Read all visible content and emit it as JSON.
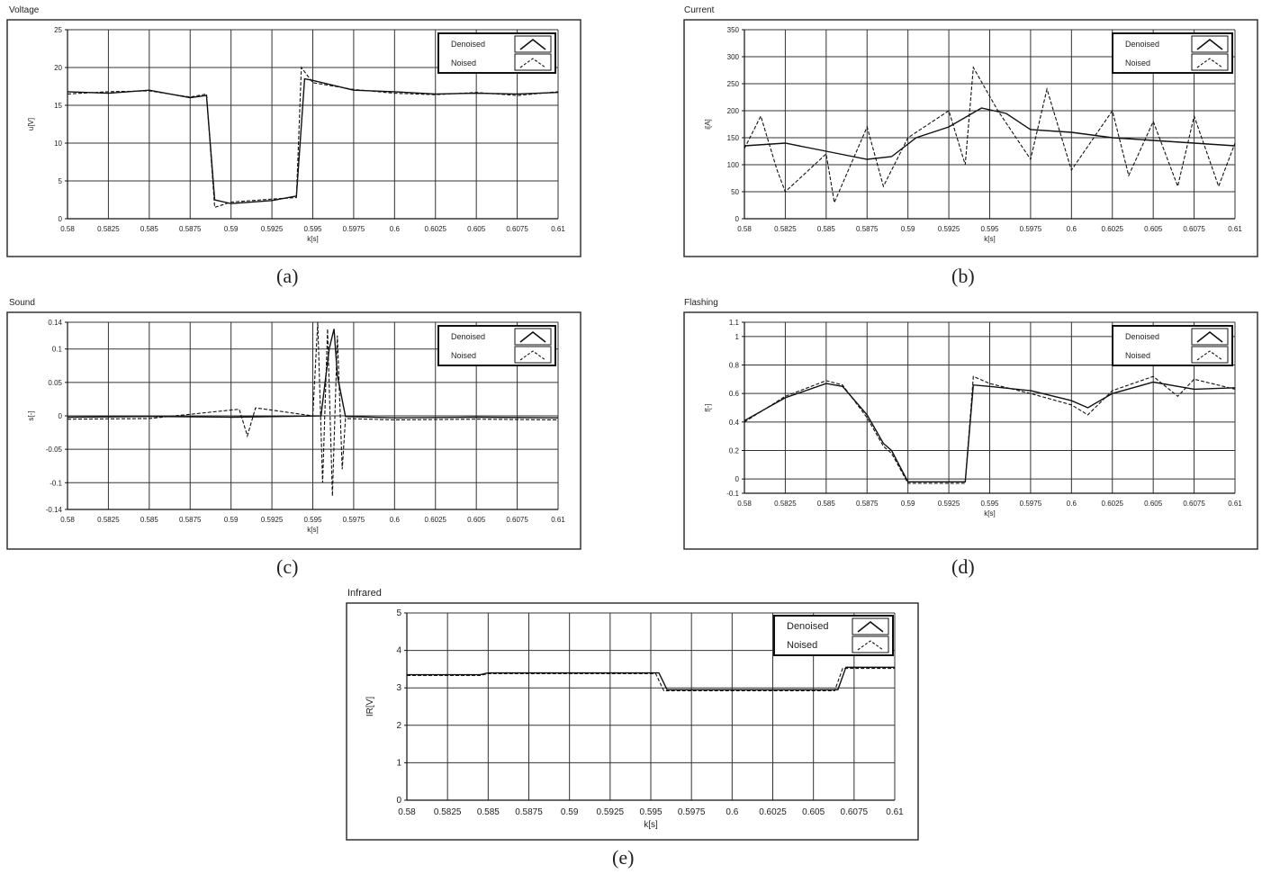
{
  "charts": [
    {
      "id": "a",
      "panel_title": "Voltage",
      "caption": "(a)",
      "ylabel": "u[V]",
      "xlabel": "k[s]",
      "yticks": [
        "0",
        "5",
        "10",
        "15",
        "20",
        "25"
      ],
      "ylim": [
        0,
        25
      ]
    },
    {
      "id": "b",
      "panel_title": "Current",
      "caption": "(b)",
      "ylabel": "i[A]",
      "xlabel": "k[s]",
      "yticks": [
        "0",
        "50",
        "100",
        "150",
        "200",
        "250",
        "300",
        "350"
      ],
      "ylim": [
        0,
        350
      ]
    },
    {
      "id": "c",
      "panel_title": "Sound",
      "caption": "(c)",
      "ylabel": "s[-]",
      "xlabel": "k[s]",
      "yticks": [
        "-0.14",
        "-0.1",
        "-0.05",
        "0",
        "0.05",
        "0.1",
        "0.14"
      ],
      "ytick_vals": [
        -0.14,
        -0.1,
        -0.05,
        0,
        0.05,
        0.1,
        0.14
      ],
      "ylim": [
        -0.14,
        0.14
      ]
    },
    {
      "id": "d",
      "panel_title": "Flashing",
      "caption": "(d)",
      "ylabel": "f[-]",
      "xlabel": "k[s]",
      "yticks": [
        "-0.1",
        "0",
        "0.2",
        "0.4",
        "0.6",
        "0.8",
        "1",
        "1.1"
      ],
      "ytick_vals": [
        -0.1,
        0,
        0.2,
        0.4,
        0.6,
        0.8,
        1,
        1.1
      ],
      "ylim": [
        -0.1,
        1.1
      ]
    },
    {
      "id": "e",
      "panel_title": "Infrared",
      "caption": "(e)",
      "ylabel": "IR[V]",
      "xlabel": "k[s]",
      "yticks": [
        "0",
        "1",
        "2",
        "3",
        "4",
        "5"
      ],
      "ylim": [
        0,
        5
      ]
    }
  ],
  "xticks": [
    "0.58",
    "0.5825",
    "0.585",
    "0.5875",
    "0.59",
    "0.5925",
    "0.595",
    "0.5975",
    "0.6",
    "0.6025",
    "0.605",
    "0.6075",
    "0.61"
  ],
  "legend": {
    "denoised": "Denoised",
    "noised": "Noised"
  },
  "chart_data": [
    {
      "type": "line",
      "title": "Voltage",
      "xlabel": "k[s]",
      "ylabel": "u[V]",
      "ylim": [
        0,
        25
      ],
      "xlim": [
        0.58,
        0.61
      ],
      "series": [
        {
          "name": "Denoised",
          "x": [
            0.58,
            0.5825,
            0.585,
            0.5875,
            0.5885,
            0.589,
            0.59,
            0.5925,
            0.594,
            0.5945,
            0.595,
            0.5975,
            0.6,
            0.6025,
            0.605,
            0.6075,
            0.61
          ],
          "values": [
            16.8,
            16.6,
            17.0,
            16.0,
            16.3,
            2.5,
            2.0,
            2.4,
            3.0,
            18.5,
            18.3,
            17.0,
            16.8,
            16.5,
            16.6,
            16.5,
            16.7
          ]
        },
        {
          "name": "Noised",
          "x": [
            0.58,
            0.5825,
            0.585,
            0.5875,
            0.5885,
            0.589,
            0.59,
            0.5925,
            0.594,
            0.5943,
            0.595,
            0.5975,
            0.6,
            0.6025,
            0.605,
            0.6075,
            0.61
          ],
          "values": [
            16.5,
            16.8,
            16.9,
            16.1,
            16.5,
            1.5,
            2.2,
            2.6,
            2.8,
            20.0,
            18.0,
            17.1,
            16.6,
            16.4,
            16.7,
            16.3,
            16.8
          ]
        }
      ]
    },
    {
      "type": "line",
      "title": "Current",
      "xlabel": "k[s]",
      "ylabel": "i[A]",
      "ylim": [
        0,
        350
      ],
      "xlim": [
        0.58,
        0.61
      ],
      "series": [
        {
          "name": "Denoised",
          "x": [
            0.58,
            0.5825,
            0.585,
            0.5875,
            0.589,
            0.5905,
            0.5925,
            0.5945,
            0.596,
            0.5975,
            0.6,
            0.6025,
            0.605,
            0.6075,
            0.61
          ],
          "values": [
            135,
            140,
            125,
            110,
            115,
            150,
            170,
            205,
            195,
            165,
            160,
            150,
            145,
            140,
            135
          ]
        },
        {
          "name": "Noised",
          "x": [
            0.58,
            0.581,
            0.582,
            0.5825,
            0.585,
            0.5855,
            0.5875,
            0.5885,
            0.59,
            0.5925,
            0.5935,
            0.594,
            0.5955,
            0.5975,
            0.5985,
            0.6,
            0.6025,
            0.6035,
            0.605,
            0.6065,
            0.6075,
            0.609,
            0.61
          ],
          "values": [
            130,
            190,
            90,
            50,
            120,
            30,
            170,
            60,
            150,
            200,
            100,
            280,
            200,
            110,
            240,
            90,
            200,
            80,
            180,
            60,
            190,
            60,
            140
          ]
        }
      ]
    },
    {
      "type": "line",
      "title": "Sound",
      "xlabel": "k[s]",
      "ylabel": "s[-]",
      "ylim": [
        -0.14,
        0.14
      ],
      "xlim": [
        0.58,
        0.61
      ],
      "series": [
        {
          "name": "Denoised",
          "x": [
            0.58,
            0.585,
            0.59,
            0.5955,
            0.596,
            0.5963,
            0.5965,
            0.597,
            0.6,
            0.605,
            0.61
          ],
          "values": [
            -0.002,
            -0.001,
            -0.002,
            0.0,
            0.1,
            0.13,
            0.06,
            -0.001,
            -0.003,
            -0.002,
            -0.003
          ]
        },
        {
          "name": "Noised",
          "x": [
            0.58,
            0.585,
            0.5905,
            0.591,
            0.5915,
            0.595,
            0.5953,
            0.5956,
            0.5959,
            0.5962,
            0.5965,
            0.5968,
            0.597,
            0.6,
            0.605,
            0.61
          ],
          "values": [
            -0.005,
            -0.004,
            0.01,
            -0.03,
            0.012,
            0.0,
            0.14,
            -0.1,
            0.13,
            -0.12,
            0.12,
            -0.08,
            -0.004,
            -0.006,
            -0.005,
            -0.006
          ]
        }
      ]
    },
    {
      "type": "line",
      "title": "Flashing",
      "xlabel": "k[s]",
      "ylabel": "f[-]",
      "ylim": [
        -0.1,
        1.1
      ],
      "xlim": [
        0.58,
        0.61
      ],
      "series": [
        {
          "name": "Denoised",
          "x": [
            0.58,
            0.5825,
            0.585,
            0.586,
            0.5875,
            0.5885,
            0.589,
            0.59,
            0.5935,
            0.594,
            0.595,
            0.5975,
            0.6,
            0.601,
            0.6025,
            0.605,
            0.6075,
            0.61
          ],
          "values": [
            0.41,
            0.57,
            0.67,
            0.65,
            0.45,
            0.25,
            0.2,
            -0.02,
            -0.02,
            0.66,
            0.65,
            0.62,
            0.55,
            0.5,
            0.6,
            0.68,
            0.63,
            0.64
          ]
        },
        {
          "name": "Noised",
          "x": [
            0.58,
            0.5825,
            0.585,
            0.586,
            0.5875,
            0.5885,
            0.589,
            0.59,
            0.5935,
            0.594,
            0.595,
            0.5975,
            0.6,
            0.601,
            0.6025,
            0.605,
            0.6065,
            0.6075,
            0.61
          ],
          "values": [
            0.4,
            0.58,
            0.69,
            0.66,
            0.43,
            0.23,
            0.18,
            -0.03,
            -0.03,
            0.72,
            0.67,
            0.6,
            0.52,
            0.45,
            0.62,
            0.72,
            0.58,
            0.7,
            0.63
          ]
        }
      ]
    },
    {
      "type": "line",
      "title": "Infrared",
      "xlabel": "k[s]",
      "ylabel": "IR[V]",
      "ylim": [
        0,
        5
      ],
      "xlim": [
        0.58,
        0.61
      ],
      "series": [
        {
          "name": "Denoised",
          "x": [
            0.58,
            0.5845,
            0.585,
            0.5955,
            0.596,
            0.6065,
            0.607,
            0.61
          ],
          "values": [
            3.35,
            3.35,
            3.4,
            3.4,
            2.95,
            2.95,
            3.55,
            3.55
          ]
        },
        {
          "name": "Noised",
          "x": [
            0.58,
            0.5845,
            0.585,
            0.5953,
            0.5958,
            0.6063,
            0.6068,
            0.61
          ],
          "values": [
            3.33,
            3.33,
            3.38,
            3.38,
            2.92,
            2.92,
            3.52,
            3.52
          ]
        }
      ]
    }
  ]
}
